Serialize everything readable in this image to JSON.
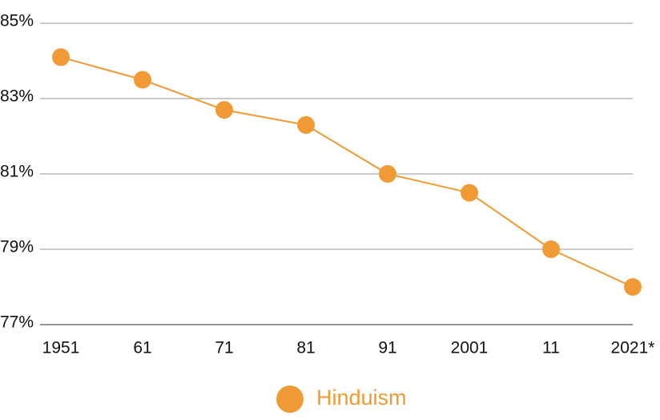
{
  "chart_data": {
    "type": "line",
    "categories": [
      "1951",
      "61",
      "71",
      "81",
      "91",
      "2001",
      "11",
      "2021*"
    ],
    "series": [
      {
        "name": "Hinduism",
        "color": "#f09a36",
        "values": [
          84.1,
          83.5,
          82.7,
          82.3,
          81.0,
          80.5,
          79.0,
          78.0
        ]
      }
    ],
    "ylim": [
      77,
      85
    ],
    "yticks": [
      {
        "value": 77,
        "label": "77%"
      },
      {
        "value": 79,
        "label": "79%"
      },
      {
        "value": 81,
        "label": "81%"
      },
      {
        "value": 83,
        "label": "83%"
      },
      {
        "value": 85,
        "label": "85%"
      }
    ],
    "grid": true,
    "legend": "bottom"
  }
}
